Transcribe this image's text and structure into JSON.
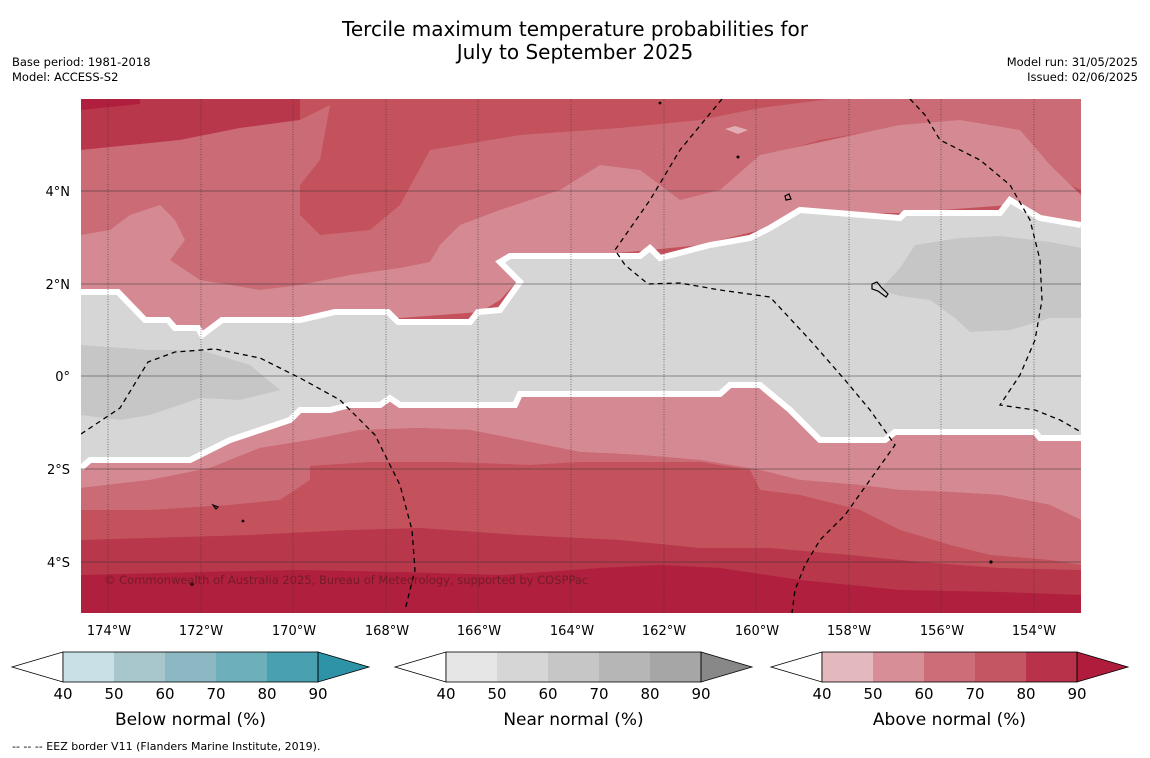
{
  "header": {
    "title_line1": "Tercile maximum temperature probabilities for",
    "title_line2": "July to September 2025",
    "base_period": "Base period: 1981-2018",
    "model": "Model: ACCESS-S2",
    "model_run": "Model run: 31/05/2025",
    "issued": "Issued: 02/06/2025"
  },
  "map": {
    "lon_labels": [
      "174°W",
      "172°W",
      "170°W",
      "168°W",
      "166°W",
      "164°W",
      "162°W",
      "160°W",
      "158°W",
      "156°W",
      "154°W"
    ],
    "lat_labels": [
      "4°N",
      "2°N",
      "0°",
      "2°S",
      "4°S"
    ],
    "copyright": "© Commonwealth of Australia 2025, Bureau of Meteorology, supported by COSPPac",
    "gridlines": true
  },
  "legends": [
    {
      "title": "Below normal (%)",
      "ticks": [
        "40",
        "50",
        "60",
        "70",
        "80",
        "90"
      ],
      "colors": [
        "#c9e1e6",
        "#a7c7cd",
        "#8bb8c3",
        "#6eafbc",
        "#48a0b0",
        "#2e93a6"
      ]
    },
    {
      "title": "Near normal (%)",
      "ticks": [
        "40",
        "50",
        "60",
        "70",
        "80",
        "90"
      ],
      "colors": [
        "#e6e6e6",
        "#d6d6d6",
        "#c6c6c6",
        "#b6b6b6",
        "#a6a6a6",
        "#888888"
      ]
    },
    {
      "title": "Above normal (%)",
      "ticks": [
        "40",
        "50",
        "60",
        "70",
        "80",
        "90"
      ],
      "colors": [
        "#e4b9be",
        "#d88e97",
        "#cc6d77",
        "#c35662",
        "#b8334a",
        "#b01d3c"
      ]
    }
  ],
  "footnote": "--  --  -- EEZ border V11 (Flanders Marine Institute, 2019).",
  "colors": {
    "above_40_50": "#e0aeb4",
    "above_50_60": "#d58a93",
    "above_60_70": "#cb6b75",
    "above_70_80": "#c4525d",
    "above_80_90": "#b8374a",
    "above_90": "#b01f3d",
    "near_40_50": "#d6d6d6",
    "near_50_60": "#c6c6c6"
  }
}
